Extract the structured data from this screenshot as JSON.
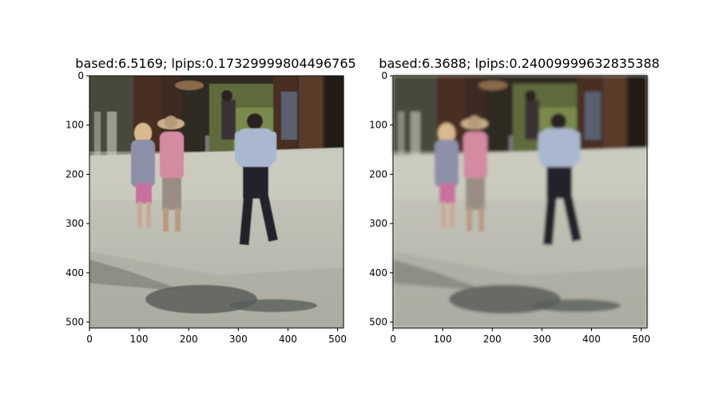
{
  "panels": [
    {
      "title": "based:6.5169; lpips:0.17329999804496765",
      "x_ticks": [
        "0",
        "100",
        "200",
        "300",
        "400",
        "500"
      ],
      "y_ticks": [
        "0",
        "100",
        "200",
        "300",
        "400",
        "500"
      ],
      "image_description": "street scene: two girls and a boy walking on a sunlit paved plaza, sharp"
    },
    {
      "title": "based:6.3688; lpips:0.24009999632835388",
      "x_ticks": [
        "0",
        "100",
        "200",
        "300",
        "400",
        "500"
      ],
      "y_ticks": [
        "0",
        "100",
        "200",
        "300",
        "400",
        "500"
      ],
      "image_description": "same street scene, blurrier reconstruction"
    }
  ],
  "axis_range": {
    "x": [
      0,
      512
    ],
    "y": [
      512,
      0
    ]
  },
  "colors": {
    "pavement": "#b9b9ae",
    "shadow": "#5a5f5a",
    "background_dark": "#2e2a24",
    "pillar": "#4a2e24",
    "foliage": "#5e6a3e",
    "shirt_blue": "#aab8cf",
    "shirt_pink": "#d48aa0",
    "pants_dark": "#23232b"
  }
}
